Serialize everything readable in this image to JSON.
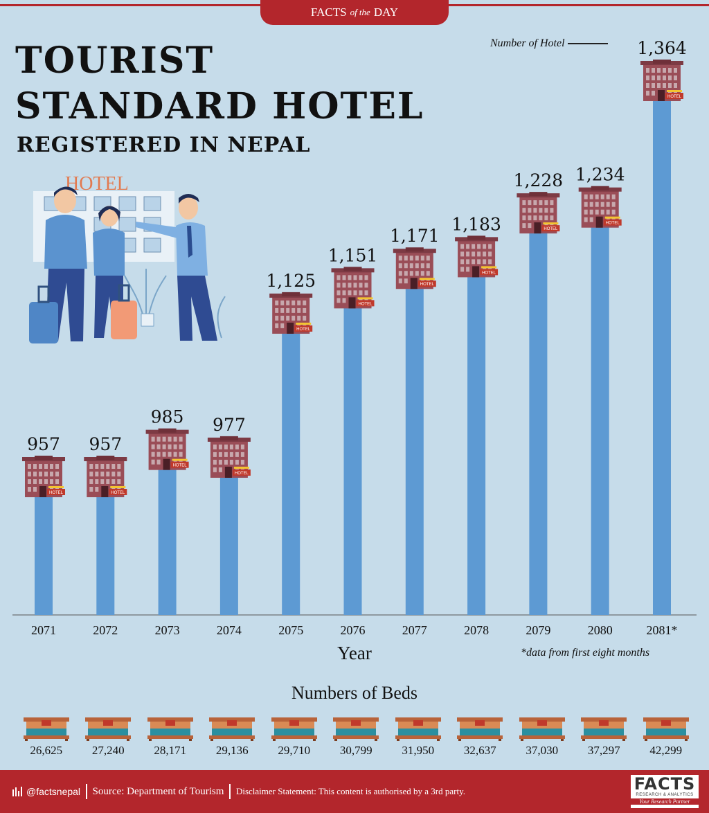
{
  "header": {
    "banner_left": "FACTS",
    "banner_mid": "of the",
    "banner_right": "DAY",
    "title_line1": "TOURIST",
    "title_line2": "STANDARD HOTEL",
    "subtitle": "REGISTERED IN NEPAL"
  },
  "illustration": {
    "sign_text": "HOTEL"
  },
  "legend": {
    "label": "Number of Hotel"
  },
  "chart_data": {
    "type": "bar",
    "categories": [
      "2071",
      "2072",
      "2073",
      "2074",
      "2075",
      "2076",
      "2077",
      "2078",
      "2079",
      "2080",
      "2081*"
    ],
    "values": [
      957,
      957,
      985,
      977,
      1125,
      1151,
      1171,
      1183,
      1228,
      1234,
      1364
    ],
    "value_labels": [
      "957",
      "957",
      "985",
      "977",
      "1,125",
      "1,151",
      "1,171",
      "1,183",
      "1,228",
      "1,234",
      "1,364"
    ],
    "xlabel": "Year",
    "ylabel": "",
    "bar_color": "#5d9ad3",
    "icon_label": "HOTEL"
  },
  "footnote": "*data from first eight months",
  "beds": {
    "title": "Numbers of Beds",
    "values": [
      "26,625",
      "27,240",
      "28,171",
      "29,136",
      "29,710",
      "30,799",
      "31,950",
      "32,637",
      "37,030",
      "37,297",
      "42,299"
    ]
  },
  "footer": {
    "handle": "@factsnepal",
    "source": "Source: Department of Tourism",
    "disclaimer": "Disclaimer Statement: This content is authorised by a 3rd party.",
    "logo_text": "FACTS",
    "logo_sub": "RESEARCH & ANALYTICS",
    "logo_tag": "Your Research Partner"
  },
  "colors": {
    "accent": "#b3262c",
    "background": "#c6dcea",
    "bar": "#5d9ad3",
    "building": "#9a4d57"
  }
}
